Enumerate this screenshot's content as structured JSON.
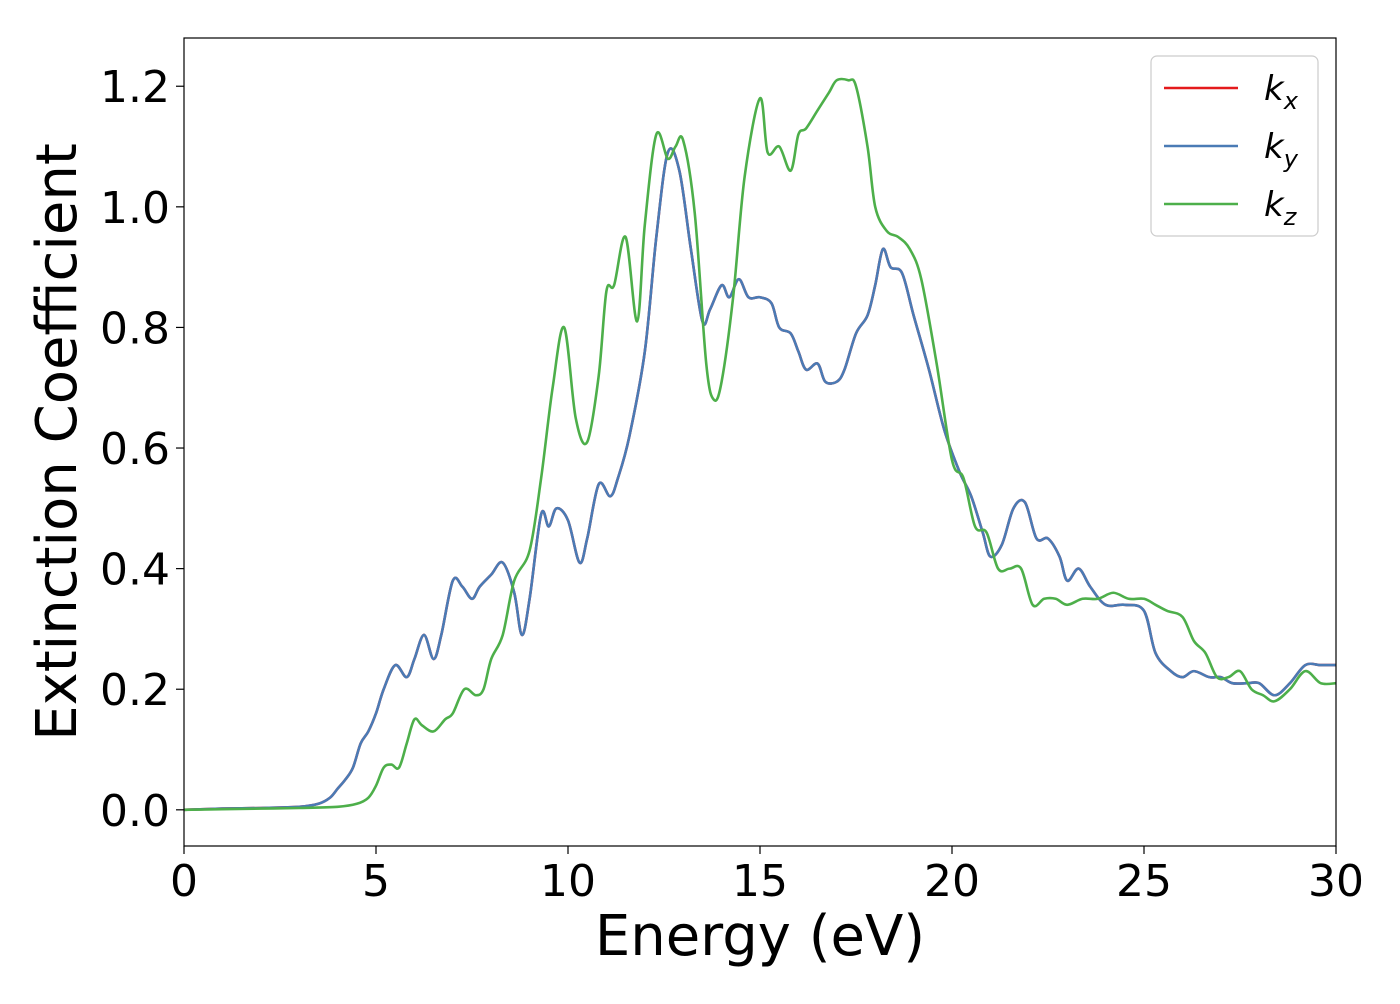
{
  "chart_data": {
    "type": "line",
    "title": "",
    "xlabel": "Energy (eV)",
    "ylabel": "Extinction Coefficient",
    "xlim": [
      0,
      30
    ],
    "ylim": [
      -0.06,
      1.28
    ],
    "xticks": [
      "0",
      "5",
      "10",
      "15",
      "20",
      "25",
      "30"
    ],
    "yticks": [
      "0.0",
      "0.2",
      "0.4",
      "0.6",
      "0.8",
      "1.0",
      "1.2"
    ],
    "grid": false,
    "legend_position": "top-right",
    "series": [
      {
        "name": "k_x",
        "legend_base": "k",
        "legend_sub": "x",
        "color": "#e41a1c",
        "x": [
          0,
          1,
          2,
          3,
          3.5,
          3.8,
          4.0,
          4.2,
          4.4,
          4.6,
          4.8,
          5.0,
          5.2,
          5.5,
          5.8,
          6.0,
          6.25,
          6.5,
          6.7,
          7.0,
          7.25,
          7.5,
          7.7,
          8.0,
          8.3,
          8.6,
          8.8,
          9.0,
          9.3,
          9.5,
          9.7,
          10.0,
          10.3,
          10.5,
          10.8,
          11.1,
          11.3,
          11.6,
          12.0,
          12.3,
          12.6,
          12.9,
          13.2,
          13.5,
          13.7,
          14.0,
          14.2,
          14.45,
          14.7,
          15.0,
          15.3,
          15.5,
          15.8,
          16.0,
          16.2,
          16.5,
          16.7,
          17.0,
          17.2,
          17.5,
          17.8,
          18.0,
          18.2,
          18.4,
          18.7,
          19.0,
          19.4,
          19.8,
          20.2,
          20.5,
          20.8,
          21.0,
          21.3,
          21.6,
          21.9,
          22.2,
          22.5,
          22.8,
          23.0,
          23.3,
          23.6,
          24.0,
          24.5,
          25.0,
          25.3,
          25.7,
          26.0,
          26.3,
          26.7,
          27.0,
          27.3,
          27.7,
          28.0,
          28.4,
          28.8,
          29.2,
          29.6,
          30.0
        ],
        "y": [
          0.0,
          0.002,
          0.003,
          0.005,
          0.01,
          0.02,
          0.035,
          0.05,
          0.07,
          0.11,
          0.13,
          0.16,
          0.2,
          0.24,
          0.22,
          0.25,
          0.29,
          0.25,
          0.29,
          0.38,
          0.37,
          0.35,
          0.37,
          0.39,
          0.41,
          0.36,
          0.29,
          0.35,
          0.49,
          0.47,
          0.5,
          0.48,
          0.41,
          0.45,
          0.54,
          0.52,
          0.55,
          0.62,
          0.76,
          0.95,
          1.09,
          1.06,
          0.93,
          0.81,
          0.83,
          0.87,
          0.85,
          0.88,
          0.85,
          0.85,
          0.84,
          0.8,
          0.79,
          0.76,
          0.73,
          0.74,
          0.71,
          0.71,
          0.73,
          0.79,
          0.82,
          0.87,
          0.93,
          0.9,
          0.89,
          0.82,
          0.73,
          0.63,
          0.56,
          0.52,
          0.46,
          0.42,
          0.44,
          0.5,
          0.51,
          0.45,
          0.45,
          0.42,
          0.38,
          0.4,
          0.37,
          0.34,
          0.34,
          0.33,
          0.26,
          0.23,
          0.22,
          0.23,
          0.22,
          0.22,
          0.21,
          0.21,
          0.21,
          0.19,
          0.21,
          0.24,
          0.24,
          0.24
        ]
      },
      {
        "name": "k_y",
        "legend_base": "k",
        "legend_sub": "y",
        "color": "#4a7bb5",
        "x": [
          0,
          1,
          2,
          3,
          3.5,
          3.8,
          4.0,
          4.2,
          4.4,
          4.6,
          4.8,
          5.0,
          5.2,
          5.5,
          5.8,
          6.0,
          6.25,
          6.5,
          6.7,
          7.0,
          7.25,
          7.5,
          7.7,
          8.0,
          8.3,
          8.6,
          8.8,
          9.0,
          9.3,
          9.5,
          9.7,
          10.0,
          10.3,
          10.5,
          10.8,
          11.1,
          11.3,
          11.6,
          12.0,
          12.3,
          12.6,
          12.9,
          13.2,
          13.5,
          13.7,
          14.0,
          14.2,
          14.45,
          14.7,
          15.0,
          15.3,
          15.5,
          15.8,
          16.0,
          16.2,
          16.5,
          16.7,
          17.0,
          17.2,
          17.5,
          17.8,
          18.0,
          18.2,
          18.4,
          18.7,
          19.0,
          19.4,
          19.8,
          20.2,
          20.5,
          20.8,
          21.0,
          21.3,
          21.6,
          21.9,
          22.2,
          22.5,
          22.8,
          23.0,
          23.3,
          23.6,
          24.0,
          24.5,
          25.0,
          25.3,
          25.7,
          26.0,
          26.3,
          26.7,
          27.0,
          27.3,
          27.7,
          28.0,
          28.4,
          28.8,
          29.2,
          29.6,
          30.0
        ],
        "y": [
          0.0,
          0.002,
          0.003,
          0.005,
          0.01,
          0.02,
          0.035,
          0.05,
          0.07,
          0.11,
          0.13,
          0.16,
          0.2,
          0.24,
          0.22,
          0.25,
          0.29,
          0.25,
          0.29,
          0.38,
          0.37,
          0.35,
          0.37,
          0.39,
          0.41,
          0.36,
          0.29,
          0.35,
          0.49,
          0.47,
          0.5,
          0.48,
          0.41,
          0.45,
          0.54,
          0.52,
          0.55,
          0.62,
          0.76,
          0.95,
          1.09,
          1.06,
          0.93,
          0.81,
          0.83,
          0.87,
          0.85,
          0.88,
          0.85,
          0.85,
          0.84,
          0.8,
          0.79,
          0.76,
          0.73,
          0.74,
          0.71,
          0.71,
          0.73,
          0.79,
          0.82,
          0.87,
          0.93,
          0.9,
          0.89,
          0.82,
          0.73,
          0.63,
          0.56,
          0.52,
          0.46,
          0.42,
          0.44,
          0.5,
          0.51,
          0.45,
          0.45,
          0.42,
          0.38,
          0.4,
          0.37,
          0.34,
          0.34,
          0.33,
          0.26,
          0.23,
          0.22,
          0.23,
          0.22,
          0.22,
          0.21,
          0.21,
          0.21,
          0.19,
          0.21,
          0.24,
          0.24,
          0.24
        ]
      },
      {
        "name": "k_z",
        "legend_base": "k",
        "legend_sub": "z",
        "color": "#4daf4a",
        "x": [
          0,
          1,
          2,
          3,
          4,
          4.5,
          4.8,
          5.0,
          5.2,
          5.4,
          5.6,
          5.8,
          6.0,
          6.2,
          6.5,
          6.8,
          7.0,
          7.3,
          7.6,
          7.8,
          8.0,
          8.3,
          8.6,
          9.0,
          9.3,
          9.6,
          9.9,
          10.2,
          10.5,
          10.8,
          11.0,
          11.2,
          11.5,
          11.8,
          12.0,
          12.3,
          12.6,
          12.8,
          13.0,
          13.3,
          13.6,
          13.8,
          14.0,
          14.3,
          14.6,
          15.0,
          15.2,
          15.5,
          15.8,
          16.0,
          16.2,
          16.5,
          16.8,
          17.0,
          17.3,
          17.5,
          17.8,
          18.0,
          18.3,
          18.6,
          18.9,
          19.2,
          19.6,
          20.0,
          20.3,
          20.6,
          20.9,
          21.2,
          21.5,
          21.8,
          22.1,
          22.4,
          22.7,
          23.0,
          23.4,
          23.8,
          24.2,
          24.6,
          25.0,
          25.3,
          25.6,
          26.0,
          26.3,
          26.6,
          26.9,
          27.2,
          27.5,
          27.8,
          28.1,
          28.4,
          28.8,
          29.2,
          29.6,
          30.0
        ],
        "y": [
          0.0,
          0.001,
          0.002,
          0.003,
          0.005,
          0.01,
          0.02,
          0.04,
          0.07,
          0.075,
          0.07,
          0.11,
          0.15,
          0.14,
          0.13,
          0.15,
          0.16,
          0.2,
          0.19,
          0.2,
          0.25,
          0.29,
          0.38,
          0.43,
          0.55,
          0.7,
          0.8,
          0.65,
          0.61,
          0.72,
          0.86,
          0.87,
          0.95,
          0.81,
          0.97,
          1.12,
          1.08,
          1.1,
          1.11,
          0.99,
          0.74,
          0.68,
          0.71,
          0.85,
          1.05,
          1.18,
          1.09,
          1.1,
          1.06,
          1.12,
          1.13,
          1.16,
          1.19,
          1.21,
          1.21,
          1.2,
          1.1,
          1.0,
          0.96,
          0.95,
          0.93,
          0.88,
          0.74,
          0.58,
          0.55,
          0.47,
          0.46,
          0.4,
          0.4,
          0.4,
          0.34,
          0.35,
          0.35,
          0.34,
          0.35,
          0.35,
          0.36,
          0.35,
          0.35,
          0.34,
          0.33,
          0.32,
          0.28,
          0.26,
          0.22,
          0.22,
          0.23,
          0.2,
          0.19,
          0.18,
          0.2,
          0.23,
          0.21,
          0.21
        ]
      }
    ]
  }
}
